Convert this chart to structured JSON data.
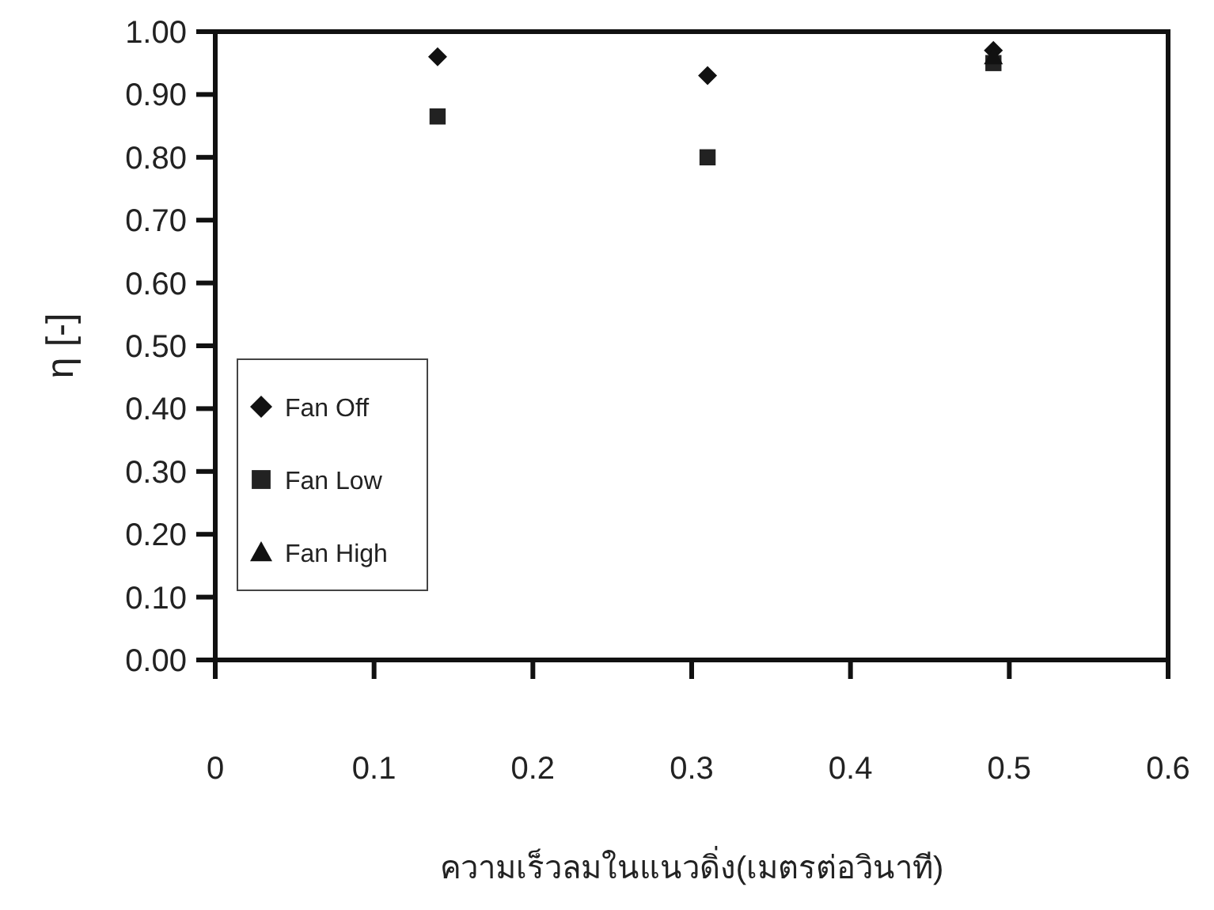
{
  "chart_data": {
    "type": "scatter",
    "xlabel": "ความเร็วลมในแนวดิ่ง(เมตรต่อวินาที)",
    "ylabel": "η [-]",
    "xlim": [
      0,
      0.6
    ],
    "xticks": [
      0,
      0.1,
      0.2,
      0.3,
      0.4,
      0.5,
      0.6
    ],
    "ylim": [
      0,
      1
    ],
    "yticks": [
      {
        "value": 0,
        "label": "0.00"
      },
      {
        "value": 0.1,
        "label": "0.10"
      },
      {
        "value": 0.2,
        "label": "0.20"
      },
      {
        "value": 0.3,
        "label": "0.30"
      },
      {
        "value": 0.4,
        "label": "0.40"
      },
      {
        "value": 0.5,
        "label": "0.50"
      },
      {
        "value": 0.6,
        "label": "0.60"
      },
      {
        "value": 0.7,
        "label": "0.70"
      },
      {
        "value": 0.8,
        "label": "0.80"
      },
      {
        "value": 0.9,
        "label": "0.90"
      },
      {
        "value": 1,
        "label": "1.00"
      }
    ],
    "grid": false,
    "legend": "left",
    "series": [
      {
        "name": "Fan Off",
        "color": "#111111",
        "marker": "diamond",
        "x": [
          0.14,
          0.31,
          0.49
        ],
        "values": [
          0.96,
          0.93,
          0.97
        ]
      },
      {
        "name": "Fan Low",
        "color": "#222222",
        "marker": "square",
        "x": [
          0.14,
          0.31,
          0.49
        ],
        "values": [
          0.865,
          0.8,
          0.95
        ]
      },
      {
        "name": "Fan High",
        "color": "#111111",
        "marker": "triangle",
        "x": [
          0.49
        ],
        "values": [
          0.96
        ]
      }
    ]
  }
}
